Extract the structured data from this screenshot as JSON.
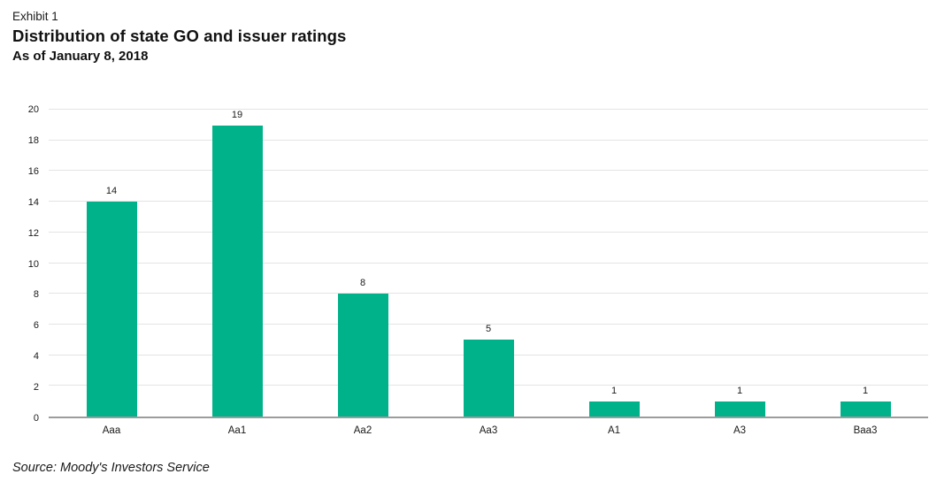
{
  "page": {
    "exhibit_label": "Exhibit 1",
    "title": "Distribution of state GO and issuer ratings",
    "subtitle": "As of January 8, 2018",
    "source": "Source: Moody's Investors Service"
  },
  "chart_data": {
    "type": "bar",
    "title": "Distribution of state GO and issuer ratings",
    "subtitle": "As of January 8, 2018",
    "categories": [
      "Aaa",
      "Aa1",
      "Aa2",
      "Aa3",
      "A1",
      "A3",
      "Baa3"
    ],
    "values": [
      14,
      19,
      8,
      5,
      1,
      1,
      1
    ],
    "data_labels": [
      14,
      19,
      8,
      5,
      1,
      1,
      1
    ],
    "xlabel": "",
    "ylabel": "",
    "ylim": [
      0,
      20
    ],
    "ytick_step": 2,
    "ytick_labels": [
      "0",
      "2",
      "4",
      "6",
      "8",
      "10",
      "12",
      "14",
      "16",
      "18",
      "20"
    ],
    "grid": true,
    "legend": "none",
    "bar_color": "#00b28a",
    "gridline_color": "#e4e4e4",
    "axis_line_color": "#9c9c9c",
    "text_color": "#1a1a1a"
  }
}
